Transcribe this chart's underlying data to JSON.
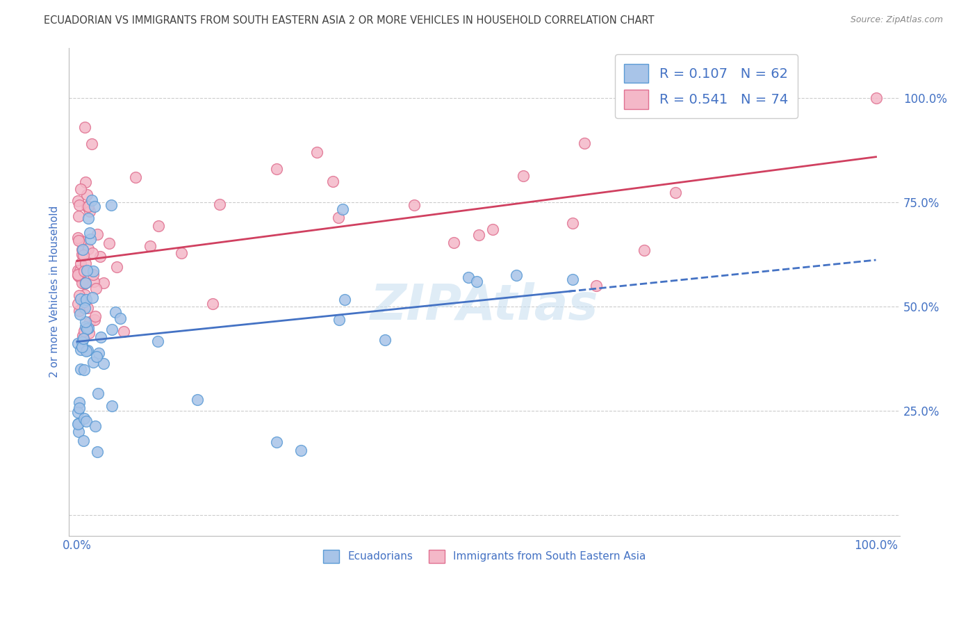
{
  "title": "ECUADORIAN VS IMMIGRANTS FROM SOUTH EASTERN ASIA 2 OR MORE VEHICLES IN HOUSEHOLD CORRELATION CHART",
  "source": "Source: ZipAtlas.com",
  "ylabel": "2 or more Vehicles in Household",
  "watermark": "ZIPAtlas",
  "ecuadorians_color": "#a8c4e8",
  "ecuadorians_edge": "#5b9bd5",
  "ecuadorians_line": "#4472c4",
  "immigrants_color": "#f4b8c8",
  "immigrants_edge": "#e07090",
  "immigrants_line": "#d04060",
  "background_color": "#ffffff",
  "grid_color": "#cccccc",
  "title_color": "#404040",
  "source_color": "#888888",
  "tick_label_color": "#4472c4",
  "R_ecu": 0.107,
  "N_ecu": 62,
  "R_imm": 0.541,
  "N_imm": 74,
  "ecu_intercept": 0.445,
  "ecu_slope": 0.12,
  "imm_intercept": 0.6,
  "imm_slope": 0.28
}
